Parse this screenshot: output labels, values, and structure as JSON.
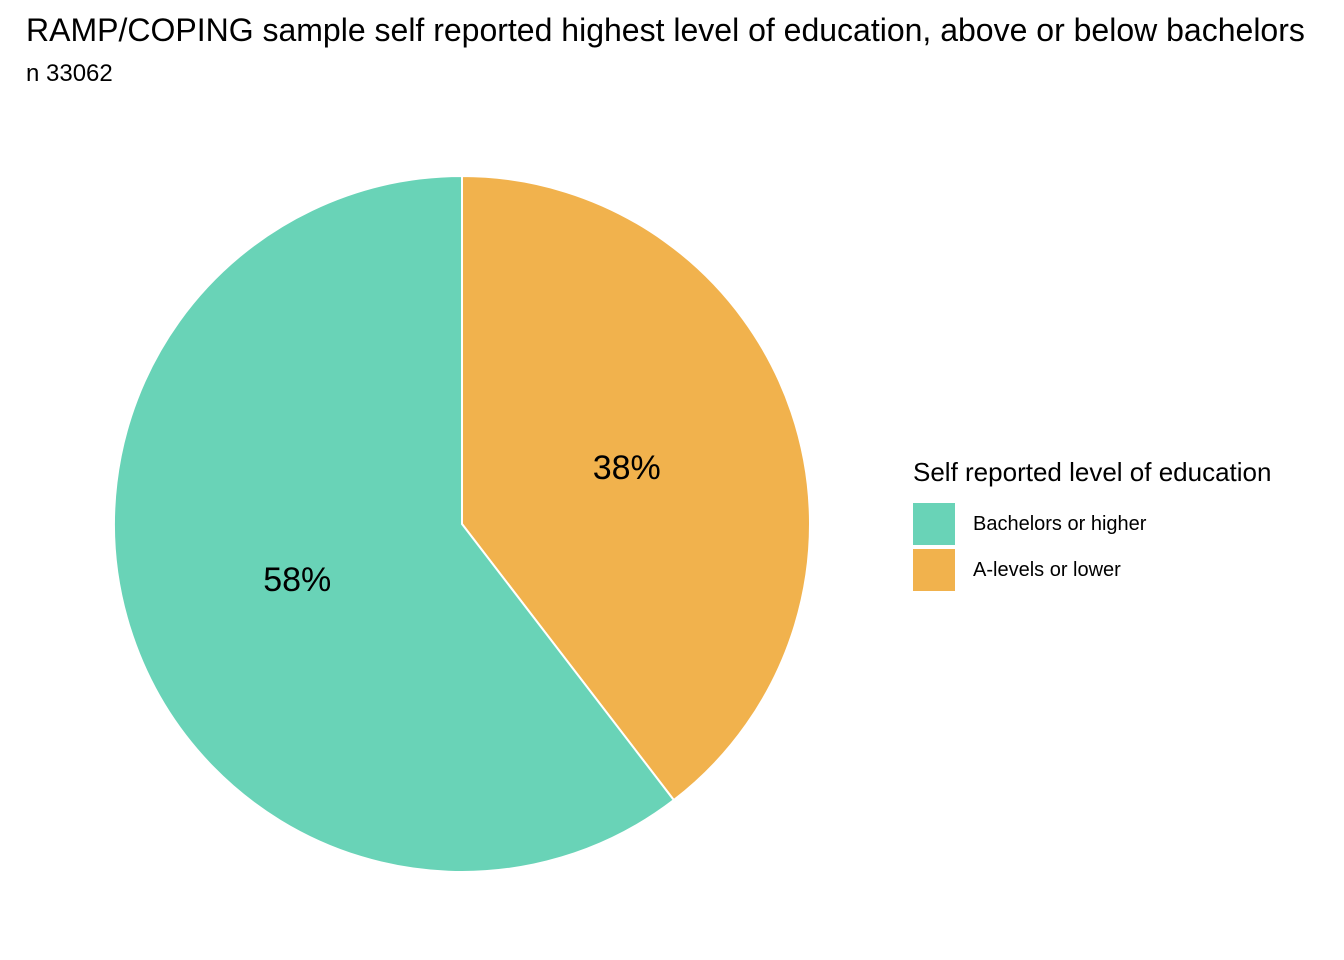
{
  "chart_data": {
    "type": "pie",
    "title": "RAMP/COPING sample self reported highest level of education, above or below bachelors",
    "subtitle": "n 33062",
    "legend_title": "Self reported level of education",
    "legend_placement": "right",
    "start_angle_deg": 0,
    "direction": "clockwise",
    "slices": [
      {
        "name": "A-levels or lower",
        "value": 38,
        "label": "38%",
        "color": "#F1B24D"
      },
      {
        "name": "Bachelors or higher",
        "value": 58,
        "label": "58%",
        "color": "#69D3B7"
      }
    ],
    "legend_items": [
      {
        "name": "Bachelors or higher",
        "color": "#69D3B7"
      },
      {
        "name": "A-levels or lower",
        "color": "#F1B24D"
      }
    ]
  }
}
